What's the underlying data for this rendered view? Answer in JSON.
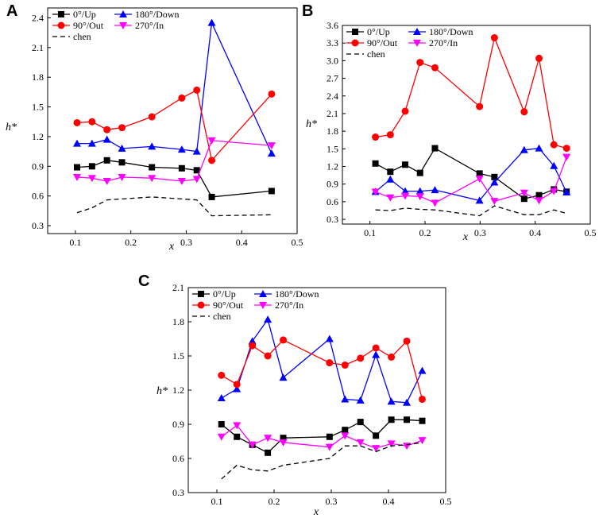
{
  "chart_data": [
    {
      "panel": "A",
      "type": "line",
      "xlabel": "x",
      "ylabel": "h*",
      "xlim": [
        0.05,
        0.5
      ],
      "ylim": [
        0.22,
        2.5
      ],
      "xticks": [
        "0.1",
        "0.2",
        "0.3",
        "0.4",
        "0.5"
      ],
      "yticks": [
        "0.3",
        "0.6",
        "0.9",
        "1.2",
        "1.5",
        "1.8",
        "2.1",
        "2.4"
      ],
      "legend": [
        "0°/Up",
        "180°/Down",
        "90°/Out",
        "270°/In",
        "chen"
      ],
      "series": [
        {
          "name": "0°/Up",
          "color": "#000000",
          "marker": "square",
          "x": [
            0.103,
            0.13,
            0.157,
            0.184,
            0.238,
            0.292,
            0.319,
            0.346,
            0.454
          ],
          "y": [
            0.89,
            0.9,
            0.96,
            0.94,
            0.89,
            0.88,
            0.86,
            0.59,
            0.65
          ]
        },
        {
          "name": "180°/Down",
          "color": "#0000ff",
          "marker": "triangle-up",
          "x": [
            0.103,
            0.13,
            0.157,
            0.184,
            0.238,
            0.292,
            0.319,
            0.346,
            0.454
          ],
          "y": [
            1.13,
            1.13,
            1.17,
            1.08,
            1.1,
            1.07,
            1.05,
            2.35,
            1.03
          ]
        },
        {
          "name": "90°/Out",
          "color": "#ff0000",
          "marker": "circle",
          "x": [
            0.103,
            0.13,
            0.157,
            0.184,
            0.238,
            0.292,
            0.319,
            0.346,
            0.454
          ],
          "y": [
            1.34,
            1.35,
            1.27,
            1.29,
            1.4,
            1.59,
            1.67,
            0.96,
            1.63
          ]
        },
        {
          "name": "270°/In",
          "color": "#ff00ff",
          "marker": "triangle-down",
          "x": [
            0.103,
            0.13,
            0.157,
            0.184,
            0.238,
            0.292,
            0.319,
            0.346,
            0.454
          ],
          "y": [
            0.79,
            0.78,
            0.75,
            0.79,
            0.78,
            0.75,
            0.77,
            1.16,
            1.11
          ]
        },
        {
          "name": "chen",
          "color": "#000000",
          "marker": "none",
          "dashed": true,
          "x": [
            0.103,
            0.13,
            0.157,
            0.184,
            0.238,
            0.292,
            0.319,
            0.346,
            0.454
          ],
          "y": [
            0.43,
            0.48,
            0.56,
            0.57,
            0.59,
            0.57,
            0.56,
            0.4,
            0.41
          ]
        }
      ]
    },
    {
      "panel": "B",
      "type": "line",
      "xlabel": "x",
      "ylabel": "h*",
      "xlim": [
        0.05,
        0.5
      ],
      "ylim": [
        0.22,
        3.6
      ],
      "xticks": [
        "0.1",
        "0.2",
        "0.3",
        "0.4",
        "0.5"
      ],
      "yticks": [
        "0.3",
        "0.6",
        "0.9",
        "1.2",
        "1.5",
        "1.8",
        "2.1",
        "2.4",
        "2.7",
        "3.0",
        "3.3",
        "3.6"
      ],
      "legend": [
        "0°/Up",
        "180°/Down",
        "90°/Out",
        "270°/In",
        "chen"
      ],
      "series": [
        {
          "name": "0°/Up",
          "color": "#000000",
          "marker": "square",
          "x": [
            0.11,
            0.137,
            0.164,
            0.191,
            0.218,
            0.299,
            0.326,
            0.38,
            0.407,
            0.434,
            0.457
          ],
          "y": [
            1.25,
            1.11,
            1.23,
            1.09,
            1.51,
            1.08,
            1.02,
            0.65,
            0.71,
            0.81,
            0.77
          ]
        },
        {
          "name": "180°/Down",
          "color": "#0000ff",
          "marker": "triangle-up",
          "x": [
            0.11,
            0.137,
            0.164,
            0.191,
            0.218,
            0.299,
            0.326,
            0.38,
            0.407,
            0.434,
            0.457
          ],
          "y": [
            0.77,
            0.98,
            0.78,
            0.78,
            0.8,
            0.62,
            0.93,
            1.48,
            1.51,
            1.21,
            0.76
          ]
        },
        {
          "name": "90°/Out",
          "color": "#ff0000",
          "marker": "circle",
          "x": [
            0.11,
            0.137,
            0.164,
            0.191,
            0.218,
            0.299,
            0.326,
            0.38,
            0.407,
            0.434,
            0.457
          ],
          "y": [
            1.7,
            1.74,
            2.14,
            2.97,
            2.88,
            2.22,
            3.39,
            2.13,
            3.04,
            1.57,
            1.51
          ]
        },
        {
          "name": "270°/In",
          "color": "#ff00ff",
          "marker": "triangle-down",
          "x": [
            0.11,
            0.137,
            0.164,
            0.191,
            0.218,
            0.299,
            0.326,
            0.38,
            0.407,
            0.434,
            0.457
          ],
          "y": [
            0.77,
            0.67,
            0.7,
            0.69,
            0.58,
            0.99,
            0.61,
            0.75,
            0.62,
            0.78,
            1.36
          ]
        },
        {
          "name": "chen",
          "color": "#000000",
          "marker": "none",
          "dashed": true,
          "x": [
            0.11,
            0.137,
            0.164,
            0.191,
            0.218,
            0.299,
            0.326,
            0.38,
            0.407,
            0.434,
            0.457
          ],
          "y": [
            0.46,
            0.45,
            0.49,
            0.47,
            0.46,
            0.36,
            0.53,
            0.38,
            0.38,
            0.46,
            0.4
          ]
        }
      ]
    },
    {
      "panel": "C",
      "type": "line",
      "xlabel": "x",
      "ylabel": "h*",
      "xlim": [
        0.05,
        0.5
      ],
      "ylim": [
        0.3,
        2.1
      ],
      "xticks": [
        "0.1",
        "0.2",
        "0.3",
        "0.4",
        "0.5"
      ],
      "yticks": [
        "0.3",
        "0.6",
        "0.9",
        "1.2",
        "1.5",
        "1.8",
        "2.1"
      ],
      "legend": [
        "0°/Up",
        "180°/Down",
        "90°/Out",
        "270°/In",
        "chen"
      ],
      "series": [
        {
          "name": "0°/Up",
          "color": "#000000",
          "marker": "square",
          "x": [
            0.108,
            0.135,
            0.162,
            0.189,
            0.216,
            0.297,
            0.324,
            0.351,
            0.378,
            0.405,
            0.432,
            0.459
          ],
          "y": [
            0.9,
            0.79,
            0.72,
            0.65,
            0.78,
            0.79,
            0.85,
            0.92,
            0.8,
            0.94,
            0.94,
            0.93
          ]
        },
        {
          "name": "180°/Down",
          "color": "#0000ff",
          "marker": "triangle-up",
          "x": [
            0.108,
            0.135,
            0.162,
            0.189,
            0.216,
            0.297,
            0.324,
            0.351,
            0.378,
            0.405,
            0.432,
            0.459
          ],
          "y": [
            1.13,
            1.21,
            1.63,
            1.82,
            1.31,
            1.65,
            1.12,
            1.11,
            1.51,
            1.1,
            1.09,
            1.37
          ]
        },
        {
          "name": "90°/Out",
          "color": "#ff0000",
          "marker": "circle",
          "x": [
            0.108,
            0.135,
            0.162,
            0.189,
            0.216,
            0.297,
            0.324,
            0.351,
            0.378,
            0.405,
            0.432,
            0.459
          ],
          "y": [
            1.33,
            1.25,
            1.59,
            1.5,
            1.64,
            1.44,
            1.42,
            1.48,
            1.57,
            1.49,
            1.63,
            1.12
          ]
        },
        {
          "name": "270°/In",
          "color": "#ff00ff",
          "marker": "triangle-down",
          "x": [
            0.108,
            0.135,
            0.162,
            0.189,
            0.216,
            0.297,
            0.324,
            0.351,
            0.378,
            0.405,
            0.432,
            0.459
          ],
          "y": [
            0.79,
            0.89,
            0.72,
            0.78,
            0.74,
            0.7,
            0.8,
            0.74,
            0.69,
            0.73,
            0.71,
            0.76
          ]
        },
        {
          "name": "chen",
          "color": "#000000",
          "marker": "none",
          "dashed": true,
          "x": [
            0.108,
            0.135,
            0.162,
            0.189,
            0.216,
            0.297,
            0.324,
            0.351,
            0.378,
            0.405,
            0.432,
            0.459
          ],
          "y": [
            0.42,
            0.54,
            0.5,
            0.49,
            0.54,
            0.6,
            0.71,
            0.71,
            0.66,
            0.71,
            0.72,
            0.74
          ]
        }
      ]
    }
  ]
}
